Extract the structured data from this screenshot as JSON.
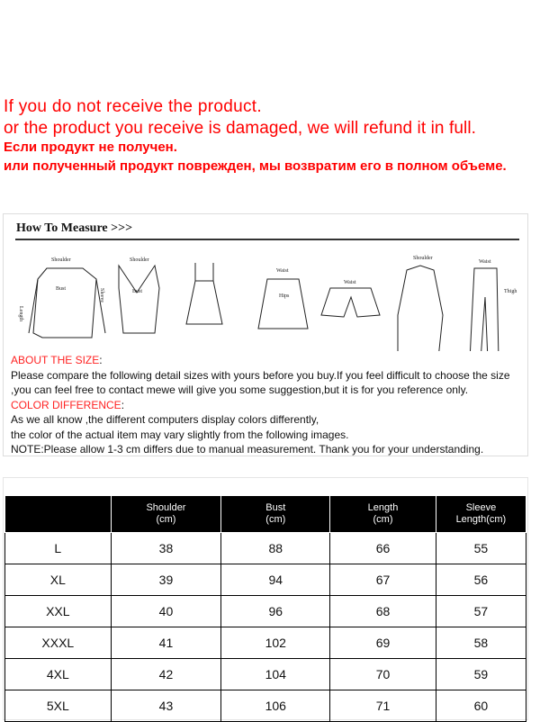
{
  "notice": {
    "line1": "If you do not receive the product.",
    "line2": "or the product you receive is damaged, we will refund it in full.",
    "line3": "Если продукт не получен.",
    "line4": "или полученный продукт поврежден, мы возвратим его в полном объеме."
  },
  "measure": {
    "title": "How To Measure >>>",
    "labels": [
      "Shoulder",
      "Bust",
      "Sleeve",
      "Length",
      "Waist",
      "Hips",
      "Thigh"
    ]
  },
  "info": {
    "about_title": "ABOUT THE SIZE",
    "about_1": "Please compare the following detail sizes with yours before you buy.If you feel difficult to choose the size",
    "about_2": ",you can feel free to contact mewe will give you some suggestion,but it is for you reference only.",
    "color_title": "COLOR DIFFERENCE",
    "color_1": "As we all know ,the different computers display colors differently,",
    "color_2": "the color of the actual item may vary slightly from the following images.",
    "note": "NOTE:Please allow 1-3 cm differs due to manual measurement. Thank you for your understanding."
  },
  "table": {
    "headers": [
      [
        "",
        ""
      ],
      [
        "Shoulder",
        "(cm)"
      ],
      [
        "Bust",
        "(cm)"
      ],
      [
        "Length",
        "(cm)"
      ],
      [
        "Sleeve",
        "Length(cm)"
      ]
    ],
    "rows": [
      [
        "L",
        "38",
        "88",
        "66",
        "55"
      ],
      [
        "XL",
        "39",
        "94",
        "67",
        "56"
      ],
      [
        "XXL",
        "40",
        "96",
        "68",
        "57"
      ],
      [
        "XXXL",
        "41",
        "102",
        "69",
        "58"
      ],
      [
        "4XL",
        "42",
        "104",
        "70",
        "59"
      ],
      [
        "5XL",
        "43",
        "106",
        "71",
        "60"
      ]
    ]
  }
}
